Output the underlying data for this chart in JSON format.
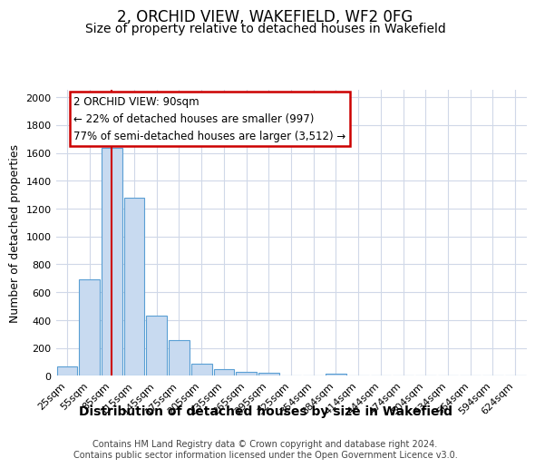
{
  "title": "2, ORCHID VIEW, WAKEFIELD, WF2 0FG",
  "subtitle": "Size of property relative to detached houses in Wakefield",
  "xlabel": "Distribution of detached houses by size in Wakefield",
  "ylabel": "Number of detached properties",
  "categories": [
    "25sqm",
    "55sqm",
    "85sqm",
    "115sqm",
    "145sqm",
    "175sqm",
    "205sqm",
    "235sqm",
    "265sqm",
    "295sqm",
    "325sqm",
    "354sqm",
    "384sqm",
    "414sqm",
    "444sqm",
    "474sqm",
    "504sqm",
    "534sqm",
    "564sqm",
    "594sqm",
    "624sqm"
  ],
  "values": [
    65,
    695,
    1635,
    1280,
    435,
    255,
    90,
    50,
    30,
    20,
    0,
    0,
    15,
    0,
    0,
    0,
    0,
    0,
    0,
    0,
    0
  ],
  "bar_color": "#c8daf0",
  "bar_edge_color": "#5a9fd4",
  "vline_x": 2,
  "vline_color": "#cc0000",
  "annotation_text": "2 ORCHID VIEW: 90sqm\n← 22% of detached houses are smaller (997)\n77% of semi-detached houses are larger (3,512) →",
  "annotation_box_color": "#ffffff",
  "annotation_box_edge": "#cc0000",
  "ylim": [
    0,
    2050
  ],
  "yticks": [
    0,
    200,
    400,
    600,
    800,
    1000,
    1200,
    1400,
    1600,
    1800,
    2000
  ],
  "background_color": "#ffffff",
  "grid_color": "#d0d8e8",
  "footer_text": "Contains HM Land Registry data © Crown copyright and database right 2024.\nContains public sector information licensed under the Open Government Licence v3.0.",
  "title_fontsize": 12,
  "subtitle_fontsize": 10,
  "xlabel_fontsize": 10,
  "ylabel_fontsize": 9,
  "tick_fontsize": 8,
  "footer_fontsize": 7,
  "ann_fontsize": 8.5
}
